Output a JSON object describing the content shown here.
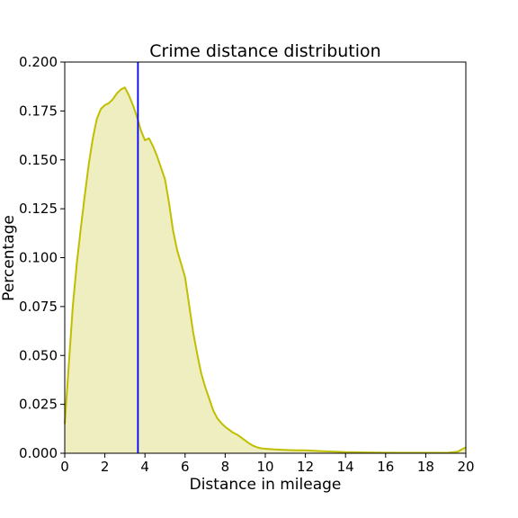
{
  "chart_data": {
    "type": "area",
    "title": "Crime distance distribution",
    "xlabel": "Distance in mileage",
    "ylabel": "Percentage",
    "xlim": [
      0,
      20
    ],
    "ylim": [
      0,
      0.2
    ],
    "x_ticks": [
      0,
      2,
      4,
      6,
      8,
      10,
      12,
      14,
      16,
      18,
      20
    ],
    "x_tick_labels": [
      "0",
      "2",
      "4",
      "6",
      "8",
      "10",
      "12",
      "14",
      "16",
      "18",
      "20"
    ],
    "y_ticks": [
      0,
      0.025,
      0.05,
      0.075,
      0.1,
      0.125,
      0.15,
      0.175,
      0.2
    ],
    "y_tick_labels": [
      "0.000",
      "0.025",
      "0.050",
      "0.075",
      "0.100",
      "0.125",
      "0.150",
      "0.175",
      "0.200"
    ],
    "grid": false,
    "colors": {
      "curve": "#bfbf00",
      "fill": "#eeeec0",
      "vline": "#0000ff",
      "axes": "#000000"
    },
    "vertical_line_x": 3.65,
    "series": [
      {
        "x": [
          0,
          0.2,
          0.4,
          0.6,
          0.8,
          1.0,
          1.2,
          1.4,
          1.6,
          1.8,
          2.0,
          2.2,
          2.4,
          2.6,
          2.8,
          3.0,
          3.2,
          3.4,
          3.6,
          3.8,
          4.0,
          4.2,
          4.4,
          4.6,
          4.8,
          5.0,
          5.2,
          5.4,
          5.6,
          5.8,
          6.0,
          6.2,
          6.4,
          6.6,
          6.8,
          7.0,
          7.2,
          7.4,
          7.6,
          7.8,
          8.0,
          8.2,
          8.4,
          8.6,
          8.8,
          9.0,
          9.2,
          9.4,
          9.6,
          9.8,
          10.0,
          10.4,
          10.8,
          11.2,
          11.6,
          12.0,
          12.5,
          13.0,
          13.5,
          14.0,
          14.5,
          15.0,
          16.0,
          17.0,
          18.0,
          19.0,
          19.6,
          19.8,
          20.0
        ],
        "y": [
          0.015,
          0.045,
          0.075,
          0.097,
          0.115,
          0.132,
          0.148,
          0.161,
          0.171,
          0.176,
          0.178,
          0.179,
          0.181,
          0.184,
          0.186,
          0.187,
          0.183,
          0.178,
          0.172,
          0.165,
          0.16,
          0.161,
          0.157,
          0.152,
          0.146,
          0.14,
          0.128,
          0.114,
          0.104,
          0.097,
          0.09,
          0.076,
          0.062,
          0.051,
          0.041,
          0.034,
          0.028,
          0.022,
          0.018,
          0.0155,
          0.0135,
          0.012,
          0.0105,
          0.0095,
          0.008,
          0.0065,
          0.005,
          0.0038,
          0.003,
          0.0025,
          0.0023,
          0.002,
          0.0018,
          0.0016,
          0.0015,
          0.0015,
          0.0012,
          0.001,
          0.0008,
          0.0006,
          0.0005,
          0.0004,
          0.0003,
          0.0002,
          0.0002,
          0.0002,
          0.0008,
          0.002,
          0.003
        ]
      }
    ]
  }
}
